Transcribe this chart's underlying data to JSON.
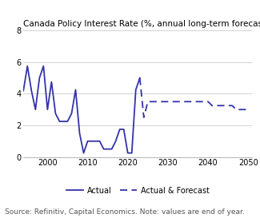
{
  "title": "Canada Policy Interest Rate (%, annual long-term forecast)",
  "source": "Source: Refinitiv, Capital Economics. Note: values are end of year.",
  "color": "#3333aa",
  "actual_x": [
    1994,
    1995,
    1996,
    1997,
    1998,
    1999,
    2000,
    2001,
    2002,
    2003,
    2004,
    2005,
    2006,
    2007,
    2008,
    2009,
    2010,
    2011,
    2012,
    2013,
    2014,
    2015,
    2016,
    2017,
    2018,
    2019,
    2020,
    2021,
    2022,
    2023
  ],
  "actual_y": [
    4.2,
    5.75,
    4.2,
    3.0,
    5.0,
    5.75,
    3.0,
    4.75,
    2.75,
    2.25,
    2.25,
    2.25,
    2.75,
    4.25,
    1.5,
    0.25,
    1.0,
    1.0,
    1.0,
    1.0,
    0.5,
    0.5,
    0.5,
    1.0,
    1.75,
    1.75,
    0.25,
    0.25,
    4.25,
    5.0
  ],
  "forecast_x": [
    2023,
    2024,
    2025,
    2026,
    2027,
    2028,
    2029,
    2030,
    2031,
    2032,
    2033,
    2034,
    2035,
    2036,
    2037,
    2038,
    2039,
    2040,
    2041,
    2042,
    2043,
    2044,
    2045,
    2046,
    2047,
    2048,
    2049,
    2050
  ],
  "forecast_y": [
    5.0,
    2.5,
    3.5,
    3.5,
    3.5,
    3.5,
    3.5,
    3.5,
    3.5,
    3.5,
    3.5,
    3.5,
    3.5,
    3.5,
    3.5,
    3.5,
    3.5,
    3.5,
    3.25,
    3.25,
    3.25,
    3.25,
    3.25,
    3.25,
    3.0,
    3.0,
    3.0,
    3.0
  ],
  "ylim": [
    0,
    8
  ],
  "xlim": [
    1994,
    2051
  ],
  "yticks": [
    0,
    2,
    4,
    6,
    8
  ],
  "xticks": [
    2000,
    2010,
    2020,
    2030,
    2040,
    2050
  ],
  "title_fontsize": 7.5,
  "source_fontsize": 6.5,
  "tick_fontsize": 7.0
}
